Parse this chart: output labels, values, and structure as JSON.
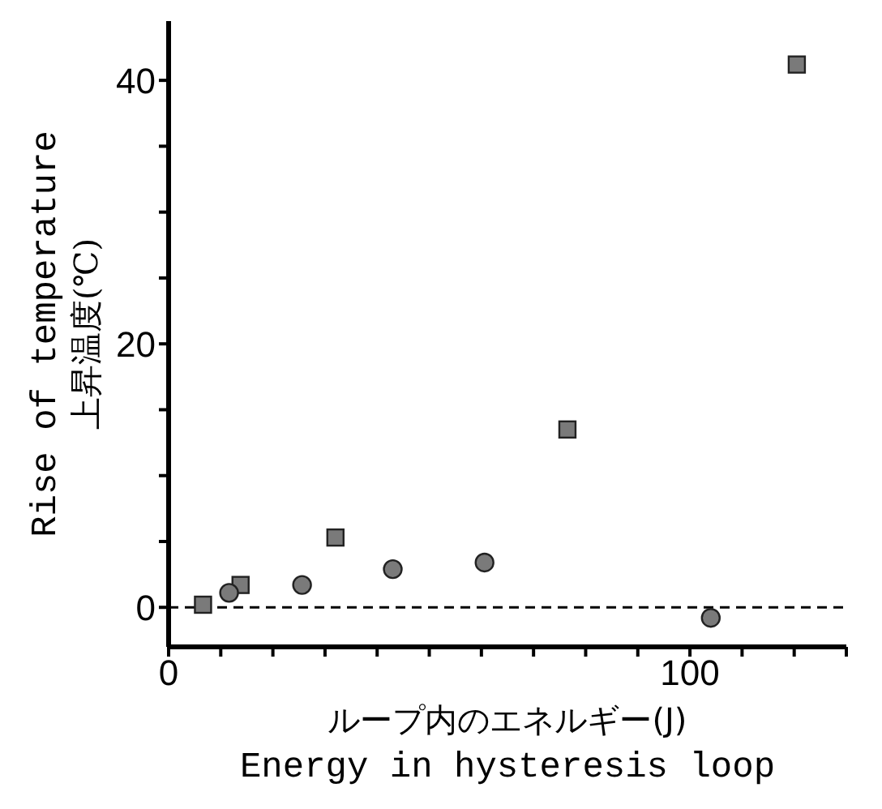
{
  "chart_data": {
    "type": "scatter",
    "xlabel": "ループ内のエネルギー(J)\nEnergy in hysteresis loop",
    "ylabel": "Rise of temperature\n上昇温度(℃)",
    "xlim": [
      0,
      130
    ],
    "xticks": [
      0,
      {
        "value": 10,
        "label": null
      },
      {
        "value": 20,
        "label": null
      },
      {
        "value": 30,
        "label": null
      },
      {
        "value": 40,
        "label": null
      },
      {
        "value": 50,
        "label": null
      },
      {
        "value": 60,
        "label": null
      },
      {
        "value": 70,
        "label": null
      },
      {
        "value": 80,
        "label": null
      },
      {
        "value": 90,
        "label": null
      },
      100,
      {
        "value": 110,
        "label": null
      },
      {
        "value": 120,
        "label": null
      },
      {
        "value": 130,
        "label": null
      }
    ],
    "ylim": [
      -3,
      44.5
    ],
    "yticks": [
      0,
      {
        "value": 5,
        "label": null
      },
      {
        "value": 10,
        "label": null
      },
      {
        "value": 15,
        "label": null
      },
      20,
      {
        "value": 25,
        "label": null
      },
      {
        "value": 30,
        "label": null
      },
      {
        "value": 35,
        "label": null
      },
      40
    ],
    "grid": false,
    "legend": false,
    "series": [
      {
        "color": "#7a7a7a",
        "marker": "square",
        "x": [
          6.6,
          13.8,
          32,
          76.5,
          120.5
        ],
        "values": [
          0.2,
          1.7,
          5.3,
          13.5,
          41.2
        ]
      },
      {
        "color": "#7a7a7a",
        "marker": "circle",
        "x": [
          11.6,
          25.6,
          43,
          60.6,
          104
        ],
        "values": [
          1.1,
          1.7,
          2.9,
          3.4,
          -0.8
        ]
      }
    ],
    "ref_lines": [
      {
        "axis": "y",
        "value": 0,
        "line_style": "dashed",
        "color": "#000000"
      }
    ]
  }
}
